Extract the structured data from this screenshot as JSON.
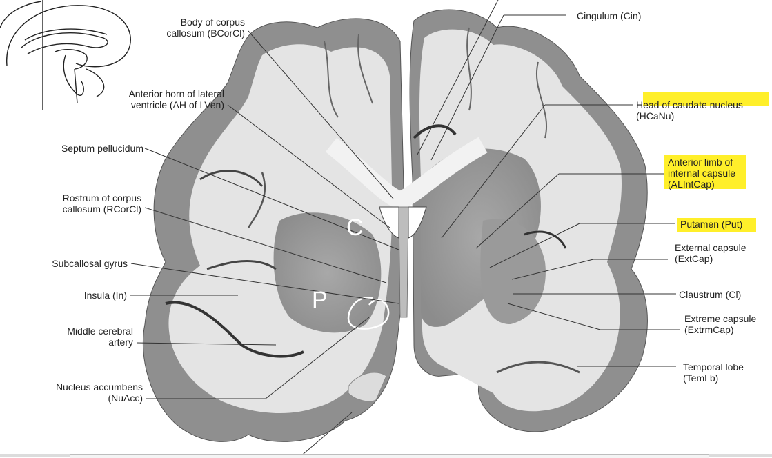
{
  "labels": {
    "body_corpus_callosum": [
      "Body of corpus",
      "callosum (BCorCl)"
    ],
    "anterior_horn": [
      "Anterior horn of lateral",
      "ventricle (AH of LVen)"
    ],
    "septum_pellucidum": [
      "Septum pellucidum"
    ],
    "rostrum_corpus_callosum": [
      "Rostrum of corpus",
      "callosum (RCorCl)"
    ],
    "subcallosal_gyrus": [
      "Subcallosal gyrus"
    ],
    "insula": [
      "Insula (In)"
    ],
    "middle_cerebral_artery": [
      "Middle cerebral",
      "artery"
    ],
    "nucleus_accumbens": [
      "Nucleus accumbens",
      "(NuAcc)"
    ],
    "cingulum": [
      "Cingulum (Cin)"
    ],
    "head_caudate": [
      "Head of caudate nucleus",
      "(HCaNu)"
    ],
    "anterior_limb": [
      "Anterior limb of",
      "internal capsule",
      "(ALIntCap)"
    ],
    "putamen": [
      "Putamen (Put)"
    ],
    "external_capsule": [
      "External capsule",
      "(ExtCap)"
    ],
    "claustrum": [
      "Claustrum (Cl)"
    ],
    "extreme_capsule": [
      "Extreme capsule",
      "(ExtrmCap)"
    ],
    "temporal_lobe": [
      "Temporal lobe",
      "(TemLb)"
    ]
  },
  "annotations": {
    "letter_c": "C",
    "letter_p": "P"
  },
  "colors": {
    "highlight": "#ffef2a",
    "tissue_light": "#e6e6e6",
    "tissue_gray": "#9a9a9a",
    "line": "#333333"
  }
}
